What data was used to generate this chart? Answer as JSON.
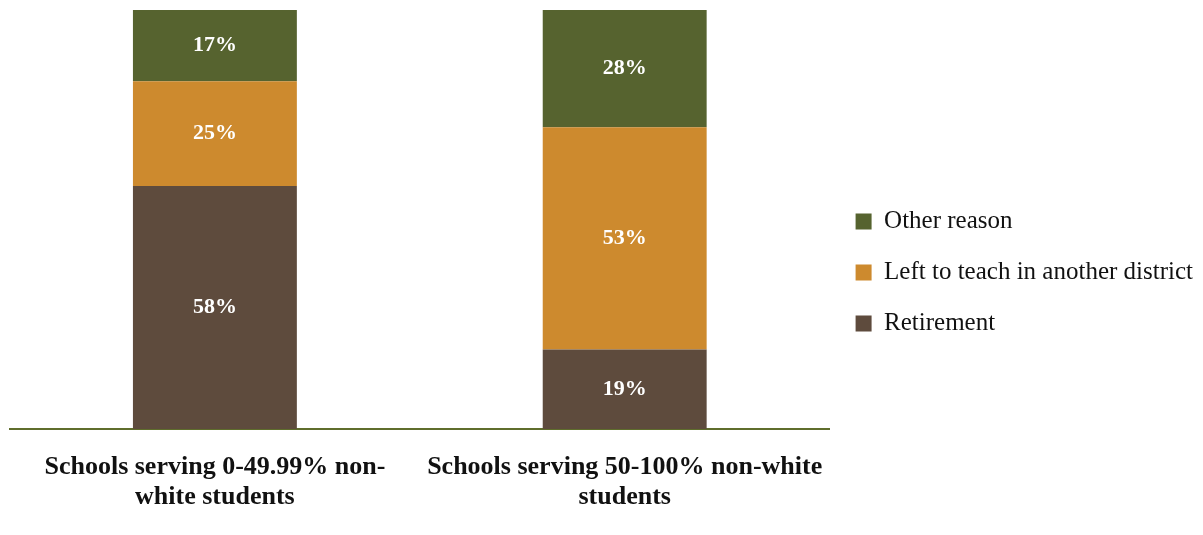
{
  "chart_data": {
    "type": "bar",
    "stacked": true,
    "categories": [
      "Schools serving 0-49.99% non-white students",
      "Schools serving 50-100% non-white students"
    ],
    "series": [
      {
        "name": "Retirement",
        "color": "#5e4b3d",
        "values": [
          58,
          19
        ],
        "value_labels": [
          "58%",
          "19%"
        ]
      },
      {
        "name": "Left to teach in another district",
        "color": "#cd8a2e",
        "values": [
          25,
          53
        ],
        "value_labels": [
          "25%",
          "53%"
        ]
      },
      {
        "name": "Other reason",
        "color": "#56632f",
        "values": [
          17,
          28
        ],
        "value_labels": [
          "17%",
          "28%"
        ]
      }
    ],
    "ylim": [
      0,
      100
    ],
    "tick_labels": "x",
    "grid": false,
    "legend": "right"
  }
}
